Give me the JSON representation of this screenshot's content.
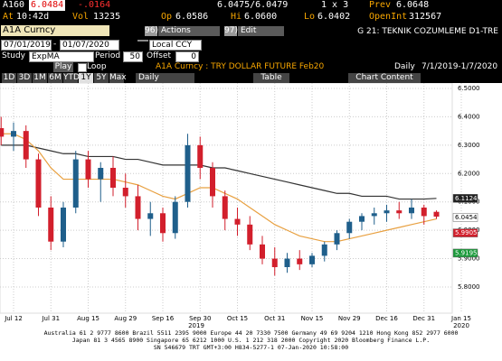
{
  "header": {
    "row1": {
      "ticker": "A160",
      "last": "6.0484",
      "change": "-.0164",
      "bid_ask": "6.0475/6.0479",
      "size": "1 x 3",
      "prev_label": "Prev",
      "prev": "6.0648"
    },
    "row2": {
      "at_label": "At",
      "time": "10:42d",
      "vol_label": "Vol",
      "vol": "13235",
      "op_label": "Op",
      "op": "6.0586",
      "hi_label": "Hi",
      "hi": "6.0600",
      "lo_label": "Lo",
      "lo": "6.0402",
      "oi_label": "OpenInt",
      "oi": "312567"
    }
  },
  "toolbar": {
    "security": "A1A Curncy",
    "actions_num": "96)",
    "actions": "Actions",
    "edit_num": "97)",
    "edit": "Edit",
    "template": "G 21: TEKNIK COZUMLEME D1-TRE",
    "date_from": "07/01/2019",
    "date_sep": "-",
    "date_to": "01/07/2020",
    "currency": "Local CCY",
    "study_label": "Study",
    "study": "ExpMA",
    "period_label": "Period",
    "period": "50",
    "offset_label": "Offset",
    "offset": "0",
    "play": "Play",
    "loop": "Loop",
    "chart_title": "A1A Curncy : TRY DOLLAR FUTURE Feb20",
    "frequency_label": "Daily",
    "range": "7/1/2019-1/7/2020",
    "periods": [
      "1D",
      "3D",
      "1M",
      "6M",
      "YTD",
      "1Y",
      "5Y",
      "Max"
    ],
    "frequency": "Daily",
    "table": "Table",
    "chart_content": "Chart Content"
  },
  "chart_data": {
    "type": "candlestick",
    "grid": true,
    "up_color": "#1f5f8b",
    "down_color": "#d21f2c",
    "categories": [
      null,
      "Jul 12",
      null,
      null,
      "Jul 31",
      null,
      null,
      "Aug 15",
      null,
      null,
      "Aug 29",
      null,
      null,
      "Sep 16",
      null,
      null,
      "Sep 30",
      null,
      null,
      "Oct 15",
      null,
      null,
      "Oct 31",
      null,
      null,
      "Nov 15",
      null,
      null,
      "Nov 29",
      null,
      null,
      "Dec 16",
      null,
      null,
      "Dec 31",
      null,
      null,
      "Jan 15",
      null,
      null
    ],
    "open": [
      6.36,
      6.33,
      6.35,
      6.25,
      6.08,
      5.96,
      6.08,
      6.25,
      6.18,
      6.22,
      6.15,
      6.12,
      6.04,
      6.06,
      5.99,
      6.1,
      6.3,
      6.22,
      6.12,
      6.04,
      6.02,
      5.95,
      5.9,
      5.87,
      5.9,
      5.88,
      5.91,
      5.95,
      5.99,
      6.03,
      6.05,
      6.06,
      6.07,
      6.06,
      6.08,
      6.065,
      null,
      null,
      null,
      null
    ],
    "high": [
      6.4,
      6.38,
      6.37,
      6.27,
      6.12,
      6.1,
      6.28,
      6.28,
      6.24,
      6.26,
      6.2,
      6.16,
      6.1,
      6.08,
      6.12,
      6.34,
      6.33,
      6.24,
      6.14,
      6.08,
      6.05,
      5.98,
      5.94,
      5.92,
      5.93,
      5.92,
      5.96,
      6.0,
      6.04,
      6.06,
      6.08,
      6.09,
      6.1,
      6.11,
      6.09,
      6.07,
      null,
      null,
      null,
      null
    ],
    "low": [
      6.3,
      6.28,
      6.22,
      6.05,
      5.93,
      5.94,
      6.06,
      6.15,
      6.1,
      6.12,
      6.08,
      6.0,
      5.98,
      5.96,
      5.97,
      6.08,
      6.18,
      6.08,
      6.0,
      5.98,
      5.93,
      5.88,
      5.84,
      5.85,
      5.86,
      5.87,
      5.89,
      5.93,
      5.97,
      6.0,
      6.02,
      6.03,
      6.04,
      6.04,
      6.02,
      6.04,
      null,
      null,
      null,
      null
    ],
    "close": [
      6.33,
      6.35,
      6.25,
      6.08,
      5.96,
      6.08,
      6.25,
      6.18,
      6.22,
      6.15,
      6.12,
      6.04,
      6.06,
      5.99,
      6.1,
      6.3,
      6.22,
      6.12,
      6.04,
      6.02,
      5.95,
      5.9,
      5.87,
      5.9,
      5.88,
      5.91,
      5.95,
      5.99,
      6.03,
      6.05,
      6.06,
      6.07,
      6.06,
      6.08,
      6.05,
      6.048,
      null,
      null,
      null,
      null
    ],
    "lines": [
      {
        "color": "#333333",
        "values": [
          6.3,
          6.3,
          6.3,
          6.29,
          6.28,
          6.27,
          6.27,
          6.26,
          6.26,
          6.26,
          6.25,
          6.25,
          6.24,
          6.23,
          6.23,
          6.23,
          6.23,
          6.22,
          6.22,
          6.21,
          6.2,
          6.19,
          6.18,
          6.17,
          6.16,
          6.15,
          6.14,
          6.13,
          6.13,
          6.12,
          6.12,
          6.12,
          6.11,
          6.11,
          6.11,
          6.1124,
          null,
          null,
          null,
          null
        ]
      },
      {
        "color": "#e8a040",
        "values": [
          6.34,
          6.34,
          6.32,
          6.28,
          6.22,
          6.18,
          6.18,
          6.18,
          6.18,
          6.18,
          6.17,
          6.16,
          6.14,
          6.12,
          6.11,
          6.13,
          6.15,
          6.15,
          6.13,
          6.11,
          6.08,
          6.05,
          6.02,
          6.0,
          5.98,
          5.97,
          5.96,
          5.96,
          5.97,
          5.98,
          5.99,
          6.0,
          6.01,
          6.02,
          6.03,
          6.04,
          null,
          null,
          null,
          null
        ]
      }
    ],
    "price_labels": [
      {
        "value": 6.1124,
        "color": "#222222"
      },
      {
        "value": 6.0454,
        "color": "#ffffff"
      },
      {
        "value": 5.9905,
        "color": "#d21f2c"
      },
      {
        "value": 5.9195,
        "color": "#1a9a3a"
      }
    ],
    "ylim": [
      5.75,
      6.52
    ],
    "yticks": [
      {
        "value": 5.8,
        "label": "5.8000"
      },
      {
        "value": 5.9,
        "label": "5.9000"
      },
      {
        "value": 6.0,
        "label": "6.0000"
      },
      {
        "value": 6.1,
        "label": "6.1000"
      },
      {
        "value": 6.2,
        "label": "6.2000"
      },
      {
        "value": 6.3,
        "label": "6.3000"
      },
      {
        "value": 6.4,
        "label": "6.4000"
      },
      {
        "value": 6.5,
        "label": "6.5000"
      }
    ],
    "year_left": "2019",
    "year_right": "2020"
  },
  "footer": [
    "Australia 61 2 9777 8600 Brazil 5511 2395 9000 Europe 44 20 7330 7500 Germany 49 69 9204 1210 Hong Kong 852 2977 6000",
    "Japan 81 3 4565 8900 Singapore 65 6212 1000 U.S. 1 212 318 2000 Copyright 2020 Bloomberg Finance L.P.",
    "SN 546679 TRT GMT+3:00 H834-5277-1 07-Jan-2020 10:58:00"
  ]
}
